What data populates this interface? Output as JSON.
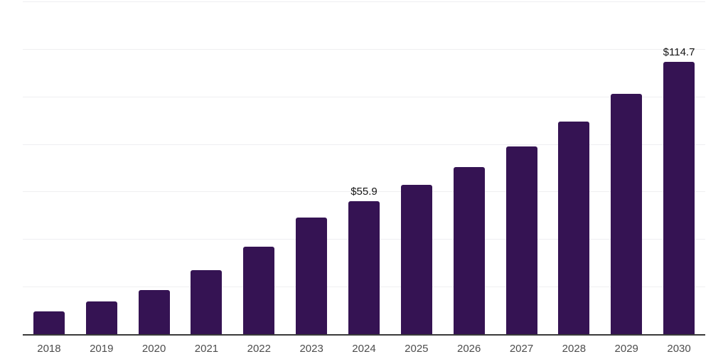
{
  "chart_data": {
    "type": "bar",
    "title": "",
    "xlabel": "",
    "ylabel": "",
    "categories": [
      "2018",
      "2019",
      "2020",
      "2021",
      "2022",
      "2023",
      "2024",
      "2025",
      "2026",
      "2027",
      "2028",
      "2029",
      "2030"
    ],
    "values": [
      9.5,
      13.7,
      18.5,
      26.9,
      36.9,
      49.2,
      55.9,
      62.7,
      70.4,
      79.0,
      89.5,
      101.1,
      114.7
    ],
    "data_labels": [
      "",
      "",
      "",
      "",
      "",
      "",
      "$55.9",
      "",
      "",
      "",
      "",
      "",
      "$114.7"
    ],
    "ylim": [
      0,
      140
    ],
    "grid": true,
    "gridline_step": 20,
    "legend": "none",
    "colors": {
      "bar": "#351353",
      "axis_line": "#3a3a3a",
      "gridline": "#efeff1",
      "tick_label": "#4d4d4d",
      "data_label": "#141414",
      "background": "#ffffff"
    }
  }
}
